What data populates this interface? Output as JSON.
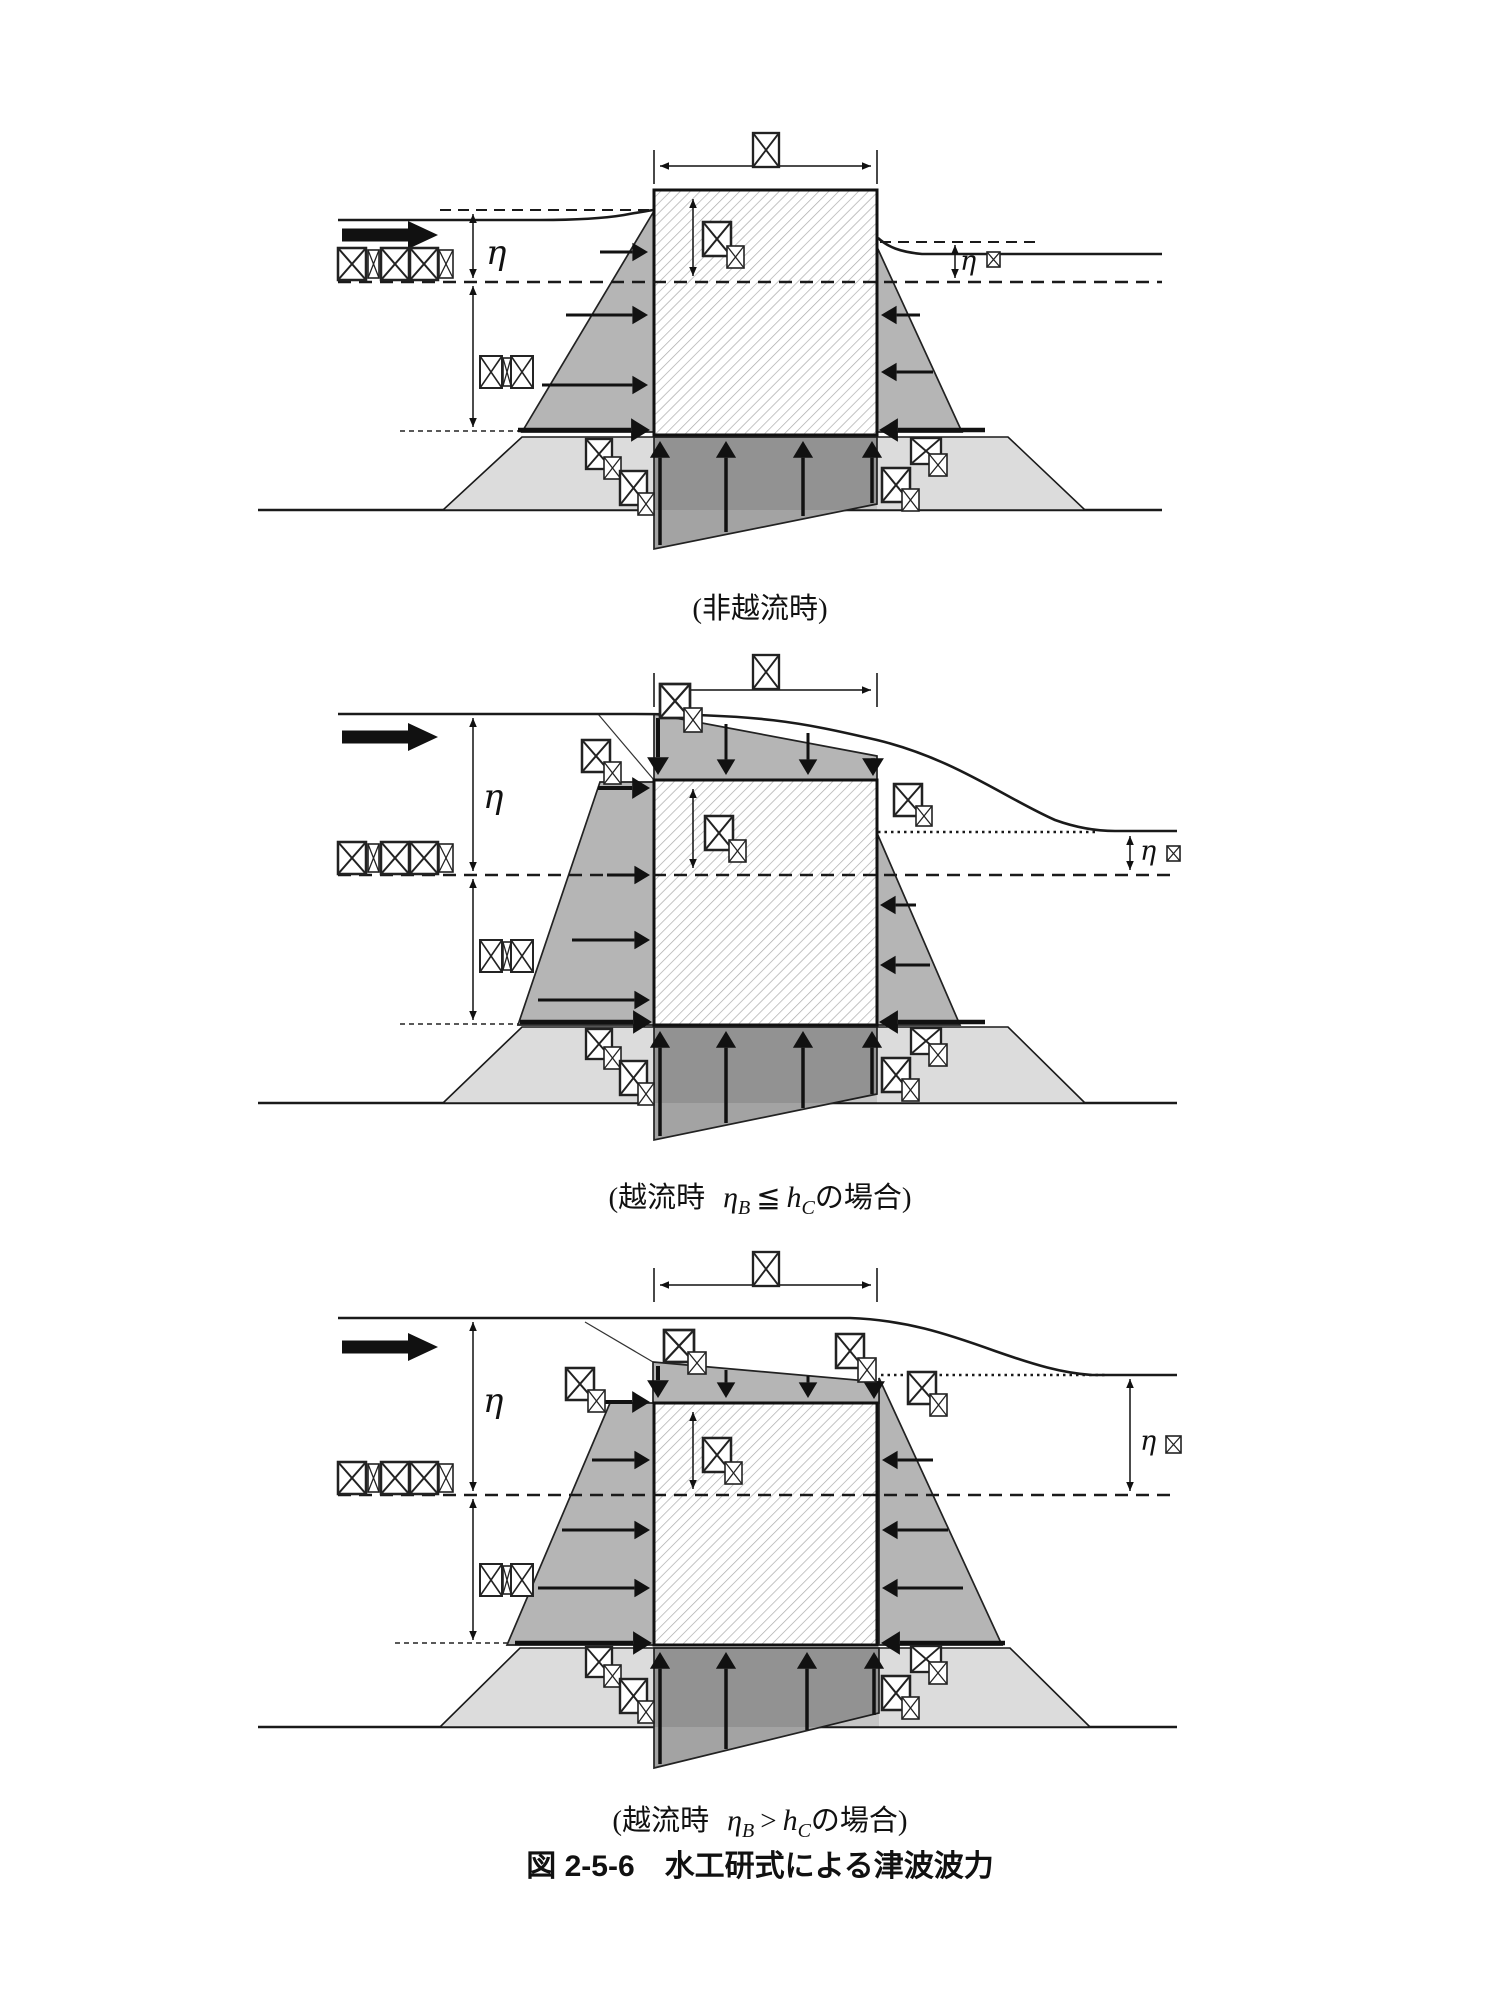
{
  "figure": {
    "title": "図 2-5-6　水工研式による津波波力",
    "symbols": {
      "eta": "η"
    },
    "panels": [
      {
        "id": "non-overflow",
        "caption": "(非越流時)"
      },
      {
        "id": "overflow-le",
        "caption_parts": {
          "pre": "(越流時",
          "eta": "η",
          "eta_sub": "B",
          "rel": "≦",
          "h": "h",
          "h_sub": "C",
          "post": "の場合)"
        }
      },
      {
        "id": "overflow-gt",
        "caption_parts": {
          "pre": "(越流時",
          "eta": "η",
          "eta_sub": "B",
          "rel": ">",
          "h": "h",
          "h_sub": "C",
          "post": "の場合)"
        }
      }
    ],
    "colors": {
      "line": "#1a1a1a",
      "pressure_fill": "#b5b5b5",
      "mound_fill": "#dcdcdc",
      "uplift_fill": "#a3a3a3",
      "background": "#ffffff"
    }
  }
}
